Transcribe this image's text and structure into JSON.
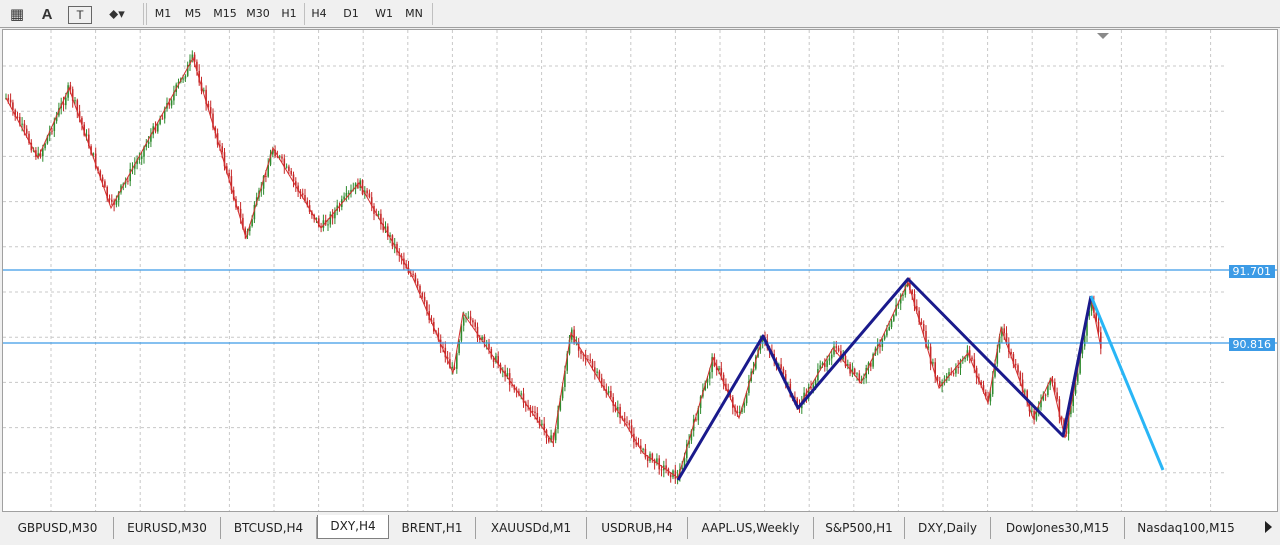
{
  "toolbar": {
    "tools": [
      {
        "name": "crosshair-icon",
        "glyph": "▦"
      },
      {
        "name": "text-icon",
        "glyph": "A"
      },
      {
        "name": "text-label-icon",
        "glyph": "T"
      },
      {
        "name": "shapes-icon",
        "glyph": "⬥▾"
      }
    ],
    "timeframes": [
      "M1",
      "M5",
      "M15",
      "M30",
      "H1",
      "H4",
      "D1",
      "W1",
      "MN"
    ]
  },
  "chart": {
    "symbol": "DXY,H4",
    "hlines": [
      {
        "label": "91.701",
        "color": "#3c9be6"
      },
      {
        "label": "90.816",
        "color": "#3c9be6"
      }
    ]
  },
  "tabs": [
    {
      "label": "GBPUSD,M30"
    },
    {
      "label": "EURUSD,M30"
    },
    {
      "label": "BTCUSD,H4"
    },
    {
      "label": "DXY,H4",
      "active": true
    },
    {
      "label": "BRENT,H1"
    },
    {
      "label": "XAUUSDd,M1"
    },
    {
      "label": "USDRUB,H4"
    },
    {
      "label": "AAPL.US,Weekly"
    },
    {
      "label": "S&P500,H1"
    },
    {
      "label": "DXY,Daily"
    },
    {
      "label": "DowJones30,M15"
    },
    {
      "label": "Nasdaq100,M15"
    }
  ],
  "colors": {
    "bull": "#2e8b2e",
    "bear": "#c62828",
    "zigzag": "#d32f2f",
    "pattern": "#1a1a8c",
    "projection": "#29b6f6",
    "grid": "#c8c8c8"
  }
}
